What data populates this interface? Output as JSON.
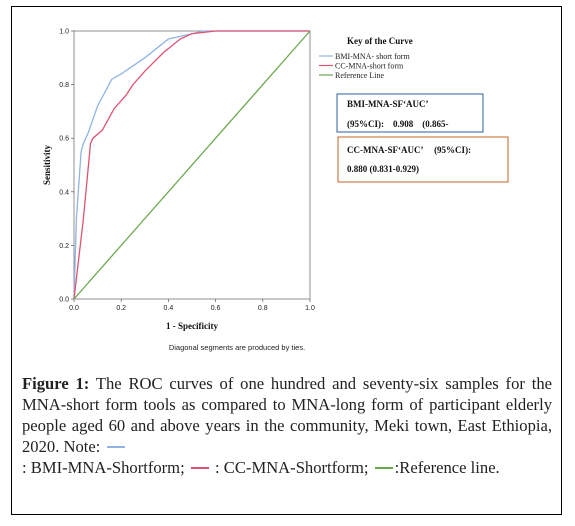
{
  "chart_data": {
    "type": "line",
    "title": "",
    "xlabel": "1 - Specificity",
    "ylabel": "Sensitivity",
    "xlim": [
      0,
      1
    ],
    "ylim": [
      0,
      1
    ],
    "x_ticks": [
      "0.0",
      "0.2",
      "0.4",
      "0.6",
      "0.8",
      "1.0"
    ],
    "y_ticks": [
      "0.0",
      "0.2",
      "0.4",
      "0.6",
      "0.8",
      "1.0"
    ],
    "grid": false,
    "legend_title": "Key of the Curve",
    "legend_position": "right",
    "note": "Diagonal segments are produced by ties.",
    "series": [
      {
        "name": "BMI-MNA- short form",
        "color": "#8fb4e3",
        "points": [
          [
            0,
            0
          ],
          [
            0.01,
            0.3
          ],
          [
            0.03,
            0.55
          ],
          [
            0.04,
            0.58
          ],
          [
            0.06,
            0.62
          ],
          [
            0.1,
            0.72
          ],
          [
            0.16,
            0.82
          ],
          [
            0.2,
            0.84
          ],
          [
            0.3,
            0.9
          ],
          [
            0.4,
            0.97
          ],
          [
            0.45,
            0.98
          ],
          [
            0.55,
            1.0
          ],
          [
            1.0,
            1.0
          ]
        ]
      },
      {
        "name": "CC-MNA-short form",
        "color": "#e05272",
        "points": [
          [
            0,
            0
          ],
          [
            0.04,
            0.3
          ],
          [
            0.07,
            0.58
          ],
          [
            0.08,
            0.6
          ],
          [
            0.12,
            0.63
          ],
          [
            0.17,
            0.71
          ],
          [
            0.22,
            0.76
          ],
          [
            0.25,
            0.8
          ],
          [
            0.3,
            0.85
          ],
          [
            0.38,
            0.92
          ],
          [
            0.45,
            0.97
          ],
          [
            0.5,
            0.99
          ],
          [
            0.6,
            1.0
          ],
          [
            1.0,
            1.0
          ]
        ]
      },
      {
        "name": "Reference Line",
        "color": "#6aa84f",
        "points": [
          [
            0,
            0
          ],
          [
            1,
            1
          ]
        ]
      }
    ],
    "annotations": {
      "bmi_box": [
        "BMI-MNA-SF‘AUC’",
        "(95%CI):    0.908    (0.865-"
      ],
      "cc_box": [
        "CC-MNA-SF‘AUC’     (95%CI):",
        "0.880 (0.831-0.929)"
      ],
      "bmi_box_border": "#2e5f9e",
      "cc_box_border": "#c1652a"
    }
  },
  "caption": {
    "label": "Figure 1:",
    "text": " The ROC curves of one hundred and seventy-six samples for the MNA-short form tools as compared to MNA-long form of participant elderly people aged 60 and above years in the community, Meki town, East Ethiopia, 2020. Note: ",
    "bmi_key": ": BMI-MNA-Shortform;",
    "cc_key": " : CC-MNA-Shortform;",
    "ref_key": ":Reference line."
  }
}
